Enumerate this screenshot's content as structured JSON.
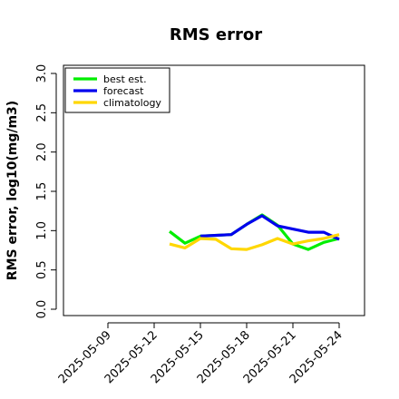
{
  "chart_data": {
    "type": "line",
    "title": "RMS error",
    "xlabel": "",
    "ylabel": "RMS error, log10(mg/m3)",
    "ylim": [
      0.0,
      3.0
    ],
    "y_ticks": [
      "0.0",
      "0.5",
      "1.0",
      "1.5",
      "2.0",
      "2.5",
      "3.0"
    ],
    "x_ticks": [
      "2025-05-09",
      "2025-05-12",
      "2025-05-15",
      "2025-05-18",
      "2025-05-21",
      "2025-05-24"
    ],
    "highlight_tick": "2025-05-15",
    "highlight_color": "#228B22",
    "grid": false,
    "legend_position": "top-left",
    "series": [
      {
        "name": "best est.",
        "color": "#00ee00",
        "points": [
          {
            "x": "2025-05-13",
            "y": 0.99
          },
          {
            "x": "2025-05-14",
            "y": 0.84
          },
          {
            "x": "2025-05-15",
            "y": 0.93
          },
          {
            "x": "2025-05-17",
            "y": 0.95
          },
          {
            "x": "2025-05-18",
            "y": 1.08
          },
          {
            "x": "2025-05-19",
            "y": 1.2
          },
          {
            "x": "2025-05-20",
            "y": 1.07
          },
          {
            "x": "2025-05-21",
            "y": 0.83
          },
          {
            "x": "2025-05-22",
            "y": 0.76
          },
          {
            "x": "2025-05-23",
            "y": 0.85
          },
          {
            "x": "2025-05-24",
            "y": 0.9
          }
        ]
      },
      {
        "name": "forecast",
        "color": "#0000ee",
        "points": [
          {
            "x": "2025-05-15",
            "y": 0.93
          },
          {
            "x": "2025-05-17",
            "y": 0.95
          },
          {
            "x": "2025-05-18",
            "y": 1.08
          },
          {
            "x": "2025-05-19",
            "y": 1.19
          },
          {
            "x": "2025-05-20",
            "y": 1.06
          },
          {
            "x": "2025-05-21",
            "y": 1.02
          },
          {
            "x": "2025-05-22",
            "y": 0.98
          },
          {
            "x": "2025-05-23",
            "y": 0.98
          },
          {
            "x": "2025-05-24",
            "y": 0.89
          }
        ]
      },
      {
        "name": "climatology",
        "color": "#ffd700",
        "points": [
          {
            "x": "2025-05-13",
            "y": 0.83
          },
          {
            "x": "2025-05-14",
            "y": 0.78
          },
          {
            "x": "2025-05-15",
            "y": 0.9
          },
          {
            "x": "2025-05-16",
            "y": 0.89
          },
          {
            "x": "2025-05-17",
            "y": 0.77
          },
          {
            "x": "2025-05-18",
            "y": 0.76
          },
          {
            "x": "2025-05-19",
            "y": 0.82
          },
          {
            "x": "2025-05-20",
            "y": 0.9
          },
          {
            "x": "2025-05-21",
            "y": 0.83
          },
          {
            "x": "2025-05-22",
            "y": 0.87
          },
          {
            "x": "2025-05-23",
            "y": 0.9
          },
          {
            "x": "2025-05-24",
            "y": 0.95
          }
        ]
      }
    ]
  }
}
